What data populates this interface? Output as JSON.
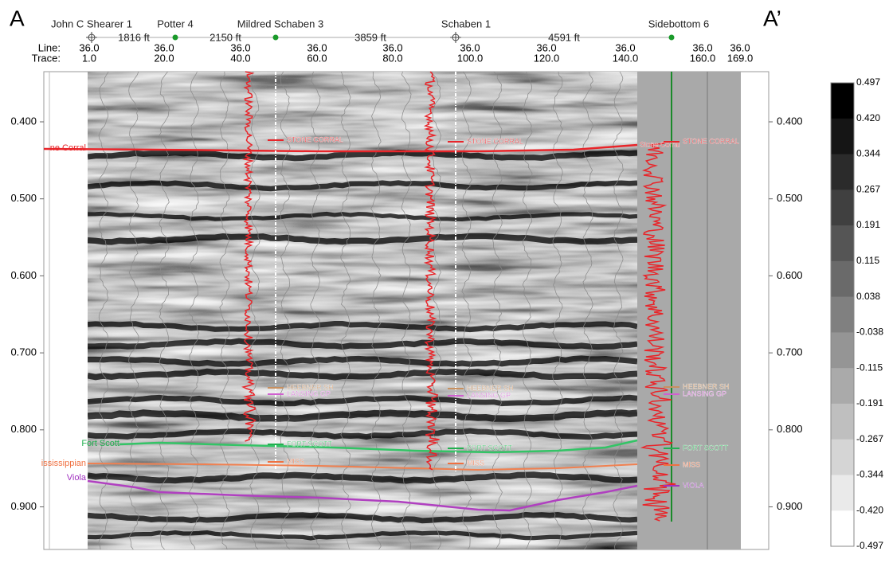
{
  "corner_labels": {
    "left": "A",
    "right": "A’"
  },
  "wells": [
    "John C Shearer 1",
    "Potter 4",
    "Mildred Schaben 3",
    "Schaben 1",
    "Sidebottom 6"
  ],
  "distances": [
    "1816 ft",
    "2150 ft",
    "3859 ft",
    "4591 ft"
  ],
  "line_label": "Line:",
  "trace_label": "Trace:",
  "line_values": [
    "36.0",
    "36.0",
    "36.0",
    "36.0",
    "36.0",
    "36.0",
    "36.0",
    "36.0",
    "36.0",
    "36.0"
  ],
  "trace_values": [
    "1.0",
    "20.0",
    "40.0",
    "60.0",
    "80.0",
    "100.0",
    "120.0",
    "140.0",
    "160.0",
    "169.0"
  ],
  "time_ticks": [
    "0.400",
    "0.500",
    "0.600",
    "0.700",
    "0.800",
    "0.900"
  ],
  "colorbar_ticks": [
    "0.497",
    "0.420",
    "0.344",
    "0.267",
    "0.191",
    "0.115",
    "0.038",
    "-0.038",
    "-0.115",
    "-0.191",
    "-0.267",
    "-0.344",
    "-0.420",
    "-0.497"
  ],
  "horizons": [
    "ne Corral",
    "Fort Scott",
    "ississippian",
    "Viola"
  ],
  "well_tops": [
    "STONE CORRAL",
    "HEEBNER SH",
    "LANSING GP",
    "FORT SCOTT",
    "MISS",
    "STONE CORRAL",
    "HEEBNER SH",
    "LANSING GP",
    "FORT SCOTT",
    "MISS",
    "Stone Corral",
    "STONE CORRAL",
    "HEEBNER SH",
    "LANSING GP",
    "FORT SCOTT",
    "MISS",
    "VIOLA"
  ]
}
